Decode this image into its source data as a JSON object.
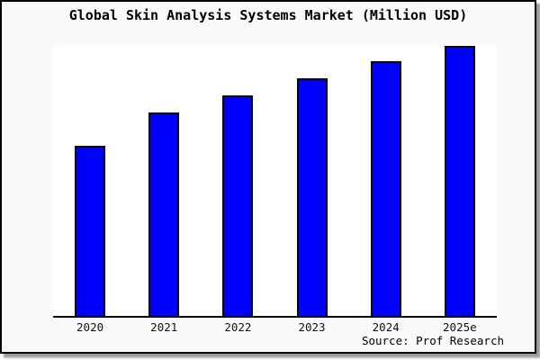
{
  "chart": {
    "title": "Global Skin Analysis Systems Market (Million USD)",
    "source": "Source: Prof Research"
  },
  "colors": {
    "bar_fill": "#0000ff",
    "bar_outline": "#000000",
    "plot_background": "#ffffff",
    "card_background": "#fafafa",
    "card_border": "#000000"
  },
  "chart_data": {
    "type": "bar",
    "title": "Global Skin Analysis Systems Market (Million USD)",
    "categories": [
      "2020",
      "2021",
      "2022",
      "2023",
      "2024",
      "2025e"
    ],
    "values": [
      63,
      75.5,
      81.7,
      88,
      94.2,
      100
    ],
    "units": "relative index estimated from bar heights (2025e = 100); y-axis has no ticks, labels or gridlines in the chart",
    "xlabel": "",
    "ylabel": "",
    "grid": false,
    "legend": false,
    "source_annotation": "Source: Prof Research",
    "bar_color": "#0000ff",
    "bar_outline_color": "#000000"
  }
}
